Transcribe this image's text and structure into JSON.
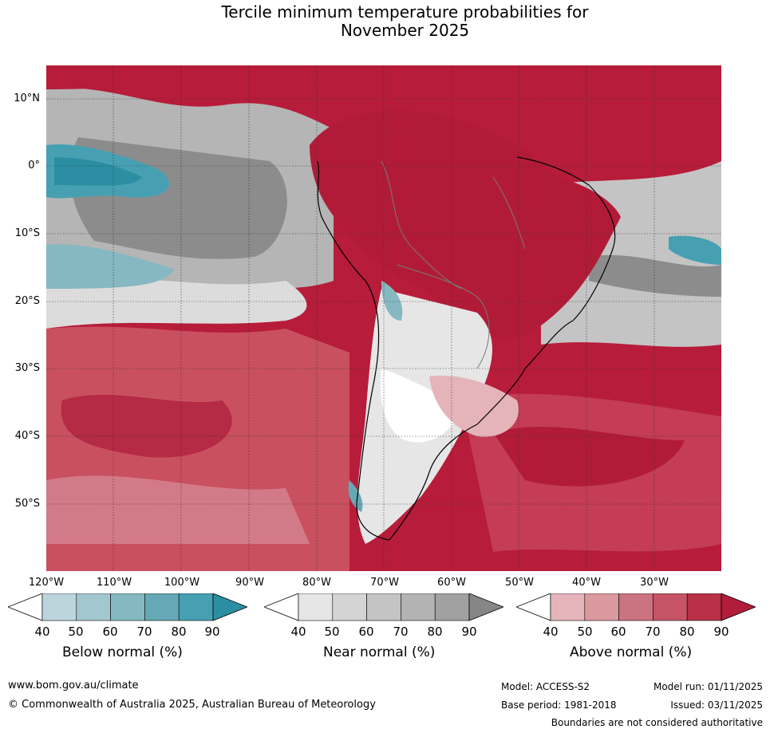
{
  "title_line1": "Tercile minimum temperature probabilities for",
  "title_line2": "November 2025",
  "lat_labels": [
    "10°N",
    "0°",
    "10°S",
    "20°S",
    "30°S",
    "40°S",
    "50°S"
  ],
  "lon_labels": [
    "120°W",
    "110°W",
    "100°W",
    "90°W",
    "80°W",
    "70°W",
    "60°W",
    "50°W",
    "40°W",
    "30°W"
  ],
  "colorbars": {
    "below": {
      "title": "Below normal (%)",
      "ticks": [
        "40",
        "50",
        "60",
        "70",
        "80",
        "90"
      ],
      "colors": [
        "#ffffff",
        "#bcd5dc",
        "#a3c7cf",
        "#86b8c2",
        "#66a8b5",
        "#47a0b2",
        "#2b8ea3"
      ]
    },
    "near": {
      "title": "Near normal (%)",
      "ticks": [
        "40",
        "50",
        "60",
        "70",
        "80",
        "90"
      ],
      "colors": [
        "#ffffff",
        "#e6e6e6",
        "#d4d4d4",
        "#c4c4c4",
        "#b3b3b3",
        "#a1a1a1",
        "#868686"
      ]
    },
    "above": {
      "title": "Above normal (%)",
      "ticks": [
        "40",
        "50",
        "60",
        "70",
        "80",
        "90"
      ],
      "colors": [
        "#ffffff",
        "#e5b4bb",
        "#d9999f",
        "#cc7382",
        "#c65466",
        "#b83147",
        "#b11d3b"
      ]
    }
  },
  "footer": {
    "website": "www.bom.gov.au/climate",
    "copyright": "© Commonwealth of Australia 2025, Australian Bureau of Meteorology",
    "model": "Model: ACCESS-S2",
    "base_period": "Base period: 1981-2018",
    "model_run": "Model run: 01/11/2025",
    "issued": "Issued: 03/11/2025",
    "disclaimer": "Boundaries are not considered authoritative"
  }
}
